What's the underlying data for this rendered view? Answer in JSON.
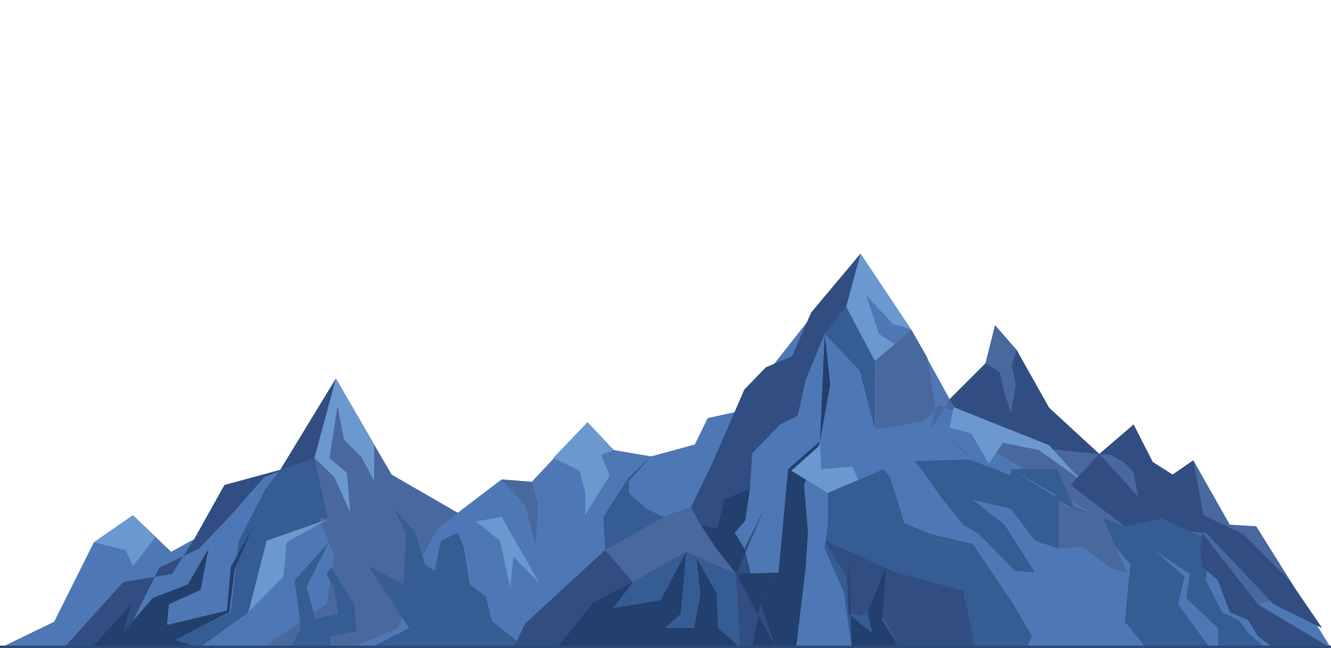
{
  "scene": {
    "subject": "mountain-range-illustration",
    "background_color": "#ffffff",
    "palette": {
      "light": "#6B98CF",
      "mid_light": "#4E78B5",
      "mid": "#49689E",
      "mid_dark": "#355C93",
      "dark": "#314D82",
      "darkest": "#233F6D",
      "ground_line": "#2B4A7A"
    }
  }
}
